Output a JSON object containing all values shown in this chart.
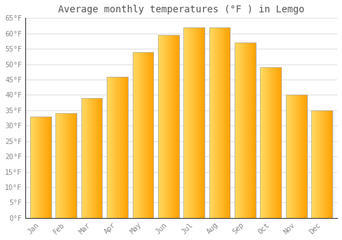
{
  "title": "Average monthly temperatures (°F ) in Lemgo",
  "months": [
    "Jan",
    "Feb",
    "Mar",
    "Apr",
    "May",
    "Jun",
    "Jul",
    "Aug",
    "Sep",
    "Oct",
    "Nov",
    "Dec"
  ],
  "values": [
    33,
    34,
    39,
    46,
    54,
    59.5,
    62,
    62,
    57,
    49,
    40,
    35
  ],
  "bar_color_light": "#FFD060",
  "bar_color_dark": "#FFA000",
  "bar_edge_color": "#AAAAAA",
  "ylim": [
    0,
    65
  ],
  "yticks": [
    0,
    5,
    10,
    15,
    20,
    25,
    30,
    35,
    40,
    45,
    50,
    55,
    60,
    65
  ],
  "ytick_labels": [
    "0°F",
    "5°F",
    "10°F",
    "15°F",
    "20°F",
    "25°F",
    "30°F",
    "35°F",
    "40°F",
    "45°F",
    "50°F",
    "55°F",
    "60°F",
    "65°F"
  ],
  "background_color": "#FFFFFF",
  "grid_color": "#E0E0E0",
  "title_fontsize": 10,
  "tick_fontsize": 7.5,
  "tick_color": "#888888",
  "font_family": "monospace",
  "bar_width": 0.82
}
